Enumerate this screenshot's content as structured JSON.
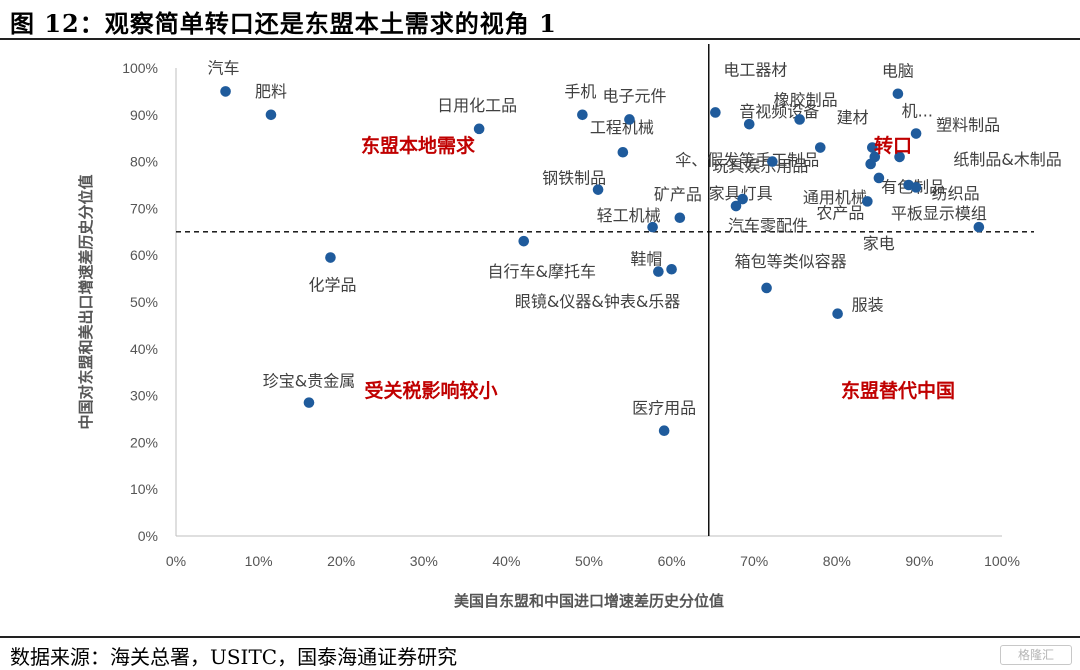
{
  "figure_title": "图 12：观察简单转口还是东盟本土需求的视角 1",
  "footer": {
    "source": "数据来源：海关总署，USITC，国泰海通证券研究"
  },
  "watermark": {
    "text": "格隆汇"
  },
  "colors": {
    "point": "#1f5b9c",
    "region": "#c00000",
    "axis": "#444444"
  },
  "chart_data": {
    "type": "scatter",
    "xlabel": "美国自东盟和中国进口增速差历史分位值",
    "ylabel": "中国对东盟和美出口增速差历史分位值",
    "xlim": [
      0,
      1
    ],
    "ylim": [
      0,
      1
    ],
    "xticks": [
      "0%",
      "10%",
      "20%",
      "30%",
      "40%",
      "50%",
      "60%",
      "70%",
      "80%",
      "90%",
      "100%"
    ],
    "yticks": [
      "0%",
      "10%",
      "20%",
      "30%",
      "40%",
      "50%",
      "60%",
      "70%",
      "80%",
      "90%",
      "100%"
    ],
    "grid": false,
    "reference_lines": {
      "vertical_x": 0.645,
      "horizontal_y": 0.65
    },
    "quadrant_labels": [
      "东盟本地需求",
      "转口",
      "受关税影响较小",
      "东盟替代中国"
    ],
    "points": [
      {
        "label": "汽车",
        "x": 0.06,
        "y": 0.95
      },
      {
        "label": "肥料",
        "x": 0.115,
        "y": 0.9
      },
      {
        "label": "日用化工品",
        "x": 0.367,
        "y": 0.87
      },
      {
        "label": "手机",
        "x": 0.492,
        "y": 0.9
      },
      {
        "label": "电子元件",
        "x": 0.549,
        "y": 0.89
      },
      {
        "label": "工程机械",
        "x": 0.541,
        "y": 0.82
      },
      {
        "label": "钢铁制品",
        "x": 0.511,
        "y": 0.74
      },
      {
        "label": "矿产品",
        "x": 0.61,
        "y": 0.68
      },
      {
        "label": "轻工机械",
        "x": 0.577,
        "y": 0.66
      },
      {
        "label": "自行车&摩托车",
        "x": 0.421,
        "y": 0.63
      },
      {
        "label": "化学品",
        "x": 0.187,
        "y": 0.595
      },
      {
        "label": "鞋帽",
        "x": 0.584,
        "y": 0.565
      },
      {
        "label": "眼镜&仪器&钟表&乐器",
        "x": 0.6,
        "y": 0.57
      },
      {
        "label": "珍宝&贵金属",
        "x": 0.161,
        "y": 0.285
      },
      {
        "label": "医疗用品",
        "x": 0.591,
        "y": 0.225
      },
      {
        "label": "电工器材",
        "x": 0.653,
        "y": 0.905
      },
      {
        "label": "音视频设备",
        "x": 0.694,
        "y": 0.88
      },
      {
        "label": "橡胶制品",
        "x": 0.755,
        "y": 0.89
      },
      {
        "label": "伞、假发等手工制品",
        "x": 0.78,
        "y": 0.83
      },
      {
        "label": "玩具娱乐用品",
        "x": 0.722,
        "y": 0.8
      },
      {
        "label": "家具灯具",
        "x": 0.686,
        "y": 0.72
      },
      {
        "label": "汽车零配件",
        "x": 0.678,
        "y": 0.705
      },
      {
        "label": "通用机械",
        "x": 0.851,
        "y": 0.765
      },
      {
        "label": "农产品",
        "x": 0.837,
        "y": 0.715
      },
      {
        "label": "建材",
        "x": 0.841,
        "y": 0.795
      },
      {
        "label": "机...",
        "x": 0.843,
        "y": 0.83
      },
      {
        "label": "电脑",
        "x": 0.874,
        "y": 0.945
      },
      {
        "label": "塑料制品",
        "x": 0.896,
        "y": 0.86
      },
      {
        "label": "纸制品&木制品",
        "x": 0.876,
        "y": 0.81
      },
      {
        "label": "纺织品",
        "x": 0.887,
        "y": 0.75
      },
      {
        "label": "有色制品",
        "x": 0.896,
        "y": 0.745
      },
      {
        "label": "家电",
        "x": 0.846,
        "y": 0.81
      },
      {
        "label": "平板显示模组",
        "x": 0.972,
        "y": 0.66
      },
      {
        "label": "箱包等类似容器",
        "x": 0.715,
        "y": 0.53
      },
      {
        "label": "服装",
        "x": 0.801,
        "y": 0.475
      }
    ]
  }
}
